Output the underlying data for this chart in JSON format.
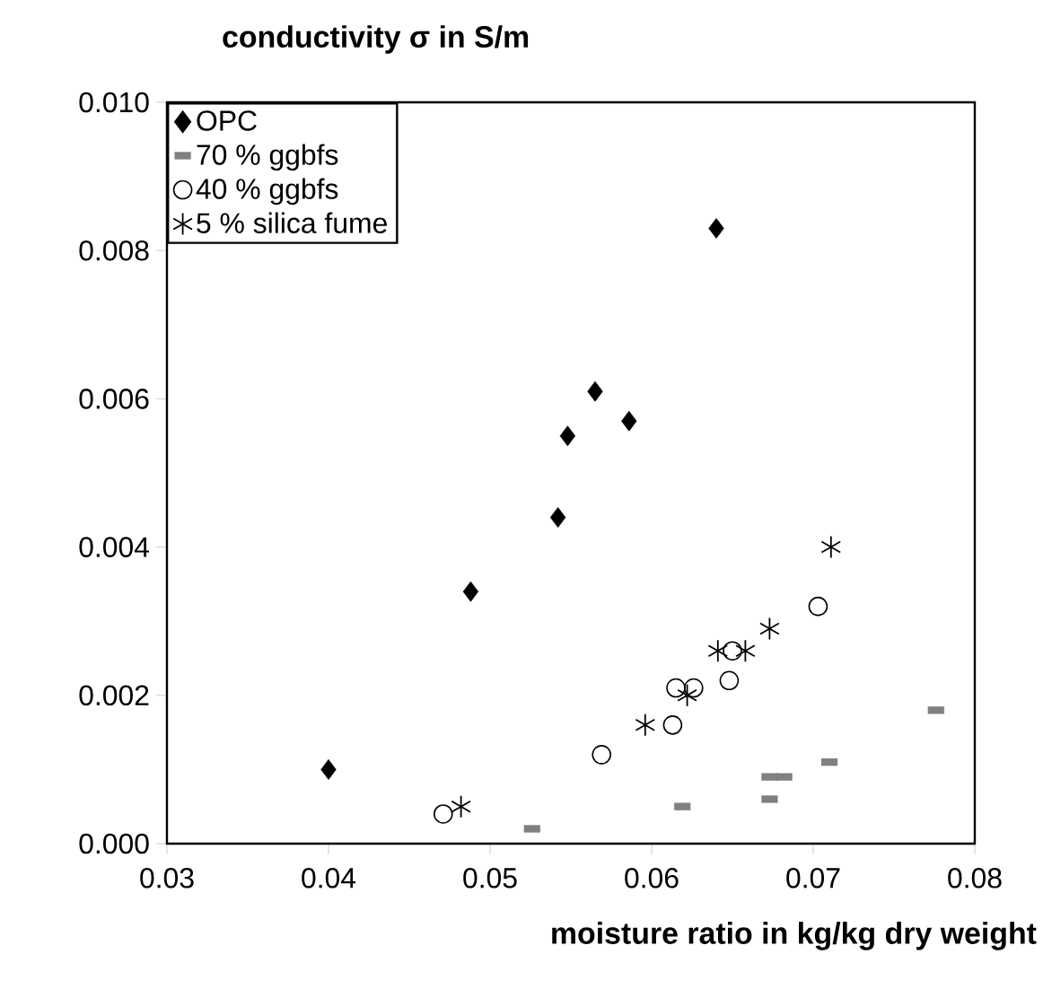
{
  "chart_data": {
    "type": "scatter",
    "title": "conductivity σ in S/m",
    "xlabel": "moisture ratio in kg/kg dry weight",
    "xlim": [
      0.03,
      0.08
    ],
    "xticks": [
      0.03,
      0.04,
      0.05,
      0.06,
      0.07,
      0.08
    ],
    "ylim": [
      0,
      0.01
    ],
    "yticks": [
      {
        "value": 0,
        "label": "0.000"
      },
      {
        "value": 0.002,
        "label": "0.002"
      },
      {
        "value": 0.004,
        "label": "0.004"
      },
      {
        "value": 0.006,
        "label": "0.006"
      },
      {
        "value": 0.008,
        "label": "0.008"
      },
      {
        "value": 0.01,
        "label": "0.010"
      }
    ],
    "grid": false,
    "legend": "top left",
    "series": [
      {
        "name": "OPC",
        "color": "#000000",
        "marker": "diamond",
        "x": [
          0.04,
          0.0488,
          0.0542,
          0.0548,
          0.0565,
          0.0586,
          0.064
        ],
        "values": [
          0.001,
          0.0034,
          0.0044,
          0.0055,
          0.0061,
          0.0057,
          0.0083
        ]
      },
      {
        "name": "70 % ggbfs",
        "color": "#808080",
        "marker": "square",
        "x": [
          0.0526,
          0.0619,
          0.0673,
          0.0673,
          0.0682,
          0.071,
          0.0776
        ],
        "values": [
          0.0002,
          0.0005,
          0.0006,
          0.0009,
          0.0009,
          0.0011,
          0.0018
        ]
      },
      {
        "name": "40 % ggbfs",
        "color": "#000000",
        "marker": "circle",
        "x": [
          0.0471,
          0.0569,
          0.0613,
          0.0615,
          0.0626,
          0.0648,
          0.065,
          0.0703
        ],
        "values": [
          0.0004,
          0.0012,
          0.0016,
          0.0021,
          0.0021,
          0.0022,
          0.0026,
          0.0032
        ]
      },
      {
        "name": "5 % silica fume",
        "color": "#000000",
        "marker": "cross",
        "x": [
          0.0482,
          0.0596,
          0.0622,
          0.0641,
          0.0658,
          0.0673,
          0.0711
        ],
        "values": [
          0.0005,
          0.0016,
          0.002,
          0.0026,
          0.0026,
          0.0029,
          0.004
        ]
      }
    ]
  }
}
